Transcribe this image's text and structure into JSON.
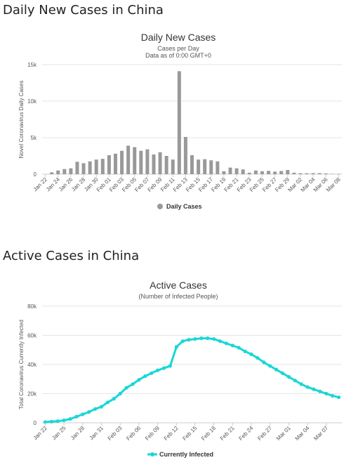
{
  "sections": [
    {
      "heading": "Daily New Cases in China"
    },
    {
      "heading": "Active Cases in China"
    }
  ],
  "chart_data": [
    {
      "type": "bar",
      "title": "Daily New Cases",
      "subtitle": "Cases per Day",
      "subtitle2": "Data as of 0:00 GMT+0",
      "xlabel": "",
      "ylabel": "Novel Coronavirus Daily Cases",
      "ylim": [
        0,
        15000
      ],
      "yticks": [
        0,
        5000,
        10000,
        15000
      ],
      "ytick_labels": [
        "0",
        "5k",
        "10k",
        "15k"
      ],
      "grid": true,
      "legend_position": "bottom",
      "color": "#999999",
      "series": [
        {
          "name": "Daily Cases"
        }
      ],
      "x": [
        "Jan 22",
        "Jan 23",
        "Jan 24",
        "Jan 25",
        "Jan 26",
        "Jan 27",
        "Jan 28",
        "Jan 29",
        "Jan 30",
        "Jan 31",
        "Feb 01",
        "Feb 02",
        "Feb 03",
        "Feb 04",
        "Feb 05",
        "Feb 06",
        "Feb 07",
        "Feb 08",
        "Feb 09",
        "Feb 10",
        "Feb 11",
        "Feb 12",
        "Feb 13",
        "Feb 14",
        "Feb 15",
        "Feb 16",
        "Feb 17",
        "Feb 18",
        "Feb 19",
        "Feb 20",
        "Feb 21",
        "Feb 22",
        "Feb 23",
        "Feb 24",
        "Feb 25",
        "Feb 26",
        "Feb 27",
        "Feb 28",
        "Feb 29",
        "Mar 01",
        "Mar 02",
        "Mar 03",
        "Mar 04",
        "Mar 05",
        "Mar 06",
        "Mar 07",
        "Mar 08"
      ],
      "values": [
        0,
        250,
        500,
        700,
        800,
        1700,
        1500,
        1750,
        2000,
        2100,
        2600,
        2800,
        3200,
        3900,
        3700,
        3200,
        3400,
        2700,
        3000,
        2500,
        2000,
        14100,
        5100,
        2600,
        2000,
        2050,
        1900,
        1750,
        400,
        900,
        800,
        650,
        200,
        500,
        400,
        450,
        350,
        430,
        570,
        200,
        125,
        120,
        140,
        145,
        100,
        45,
        40
      ],
      "tick_labels": [
        "Jan 22",
        "Jan 24",
        "Jan 26",
        "Jan 28",
        "Jan 30",
        "Feb 01",
        "Feb 03",
        "Feb 05",
        "Feb 07",
        "Feb 09",
        "Feb 11",
        "Feb 13",
        "Feb 15",
        "Feb 17",
        "Feb 19",
        "Feb 21",
        "Feb 23",
        "Feb 25",
        "Feb 27",
        "Feb 29",
        "Mar 02",
        "Mar 04",
        "Mar 06",
        "Mar 08"
      ]
    },
    {
      "type": "line",
      "title": "Active Cases",
      "subtitle": "(Number of Infected People)",
      "xlabel": "",
      "ylabel": "Total Coronavirus Currently Infected",
      "ylim": [
        0,
        80000
      ],
      "yticks": [
        0,
        20000,
        40000,
        60000,
        80000
      ],
      "ytick_labels": [
        "0",
        "20k",
        "40k",
        "60k",
        "80k"
      ],
      "grid": true,
      "legend_position": "bottom",
      "color": "#1bd6d6",
      "series": [
        {
          "name": "Currently Infected"
        }
      ],
      "x": [
        "Jan 22",
        "Jan 23",
        "Jan 24",
        "Jan 25",
        "Jan 26",
        "Jan 27",
        "Jan 28",
        "Jan 29",
        "Jan 30",
        "Jan 31",
        "Feb 01",
        "Feb 02",
        "Feb 03",
        "Feb 04",
        "Feb 05",
        "Feb 06",
        "Feb 07",
        "Feb 08",
        "Feb 09",
        "Feb 10",
        "Feb 11",
        "Feb 12",
        "Feb 13",
        "Feb 14",
        "Feb 15",
        "Feb 16",
        "Feb 17",
        "Feb 18",
        "Feb 19",
        "Feb 20",
        "Feb 21",
        "Feb 22",
        "Feb 23",
        "Feb 24",
        "Feb 25",
        "Feb 26",
        "Feb 27",
        "Feb 28",
        "Feb 29",
        "Mar 01",
        "Mar 02",
        "Mar 03",
        "Mar 04",
        "Mar 05",
        "Mar 06",
        "Mar 07",
        "Mar 08",
        "Mar 09"
      ],
      "values": [
        500,
        800,
        1100,
        1700,
        2600,
        4200,
        5800,
        7400,
        9500,
        11000,
        14000,
        16500,
        20000,
        24000,
        26500,
        29500,
        32000,
        34000,
        36000,
        37500,
        39000,
        52000,
        56000,
        57000,
        57500,
        58000,
        58000,
        57500,
        56000,
        54500,
        53000,
        51500,
        49000,
        47000,
        44500,
        41500,
        39000,
        36500,
        34000,
        31500,
        29000,
        26500,
        24500,
        23000,
        21500,
        20000,
        18500,
        17500
      ],
      "tick_labels": [
        "Jan 22",
        "Jan 25",
        "Jan 28",
        "Jan 31",
        "Feb 03",
        "Feb 06",
        "Feb 09",
        "Feb 12",
        "Feb 15",
        "Feb 18",
        "Feb 21",
        "Feb 24",
        "Feb 27",
        "Mar 01",
        "Mar 04",
        "Mar 07"
      ]
    }
  ]
}
